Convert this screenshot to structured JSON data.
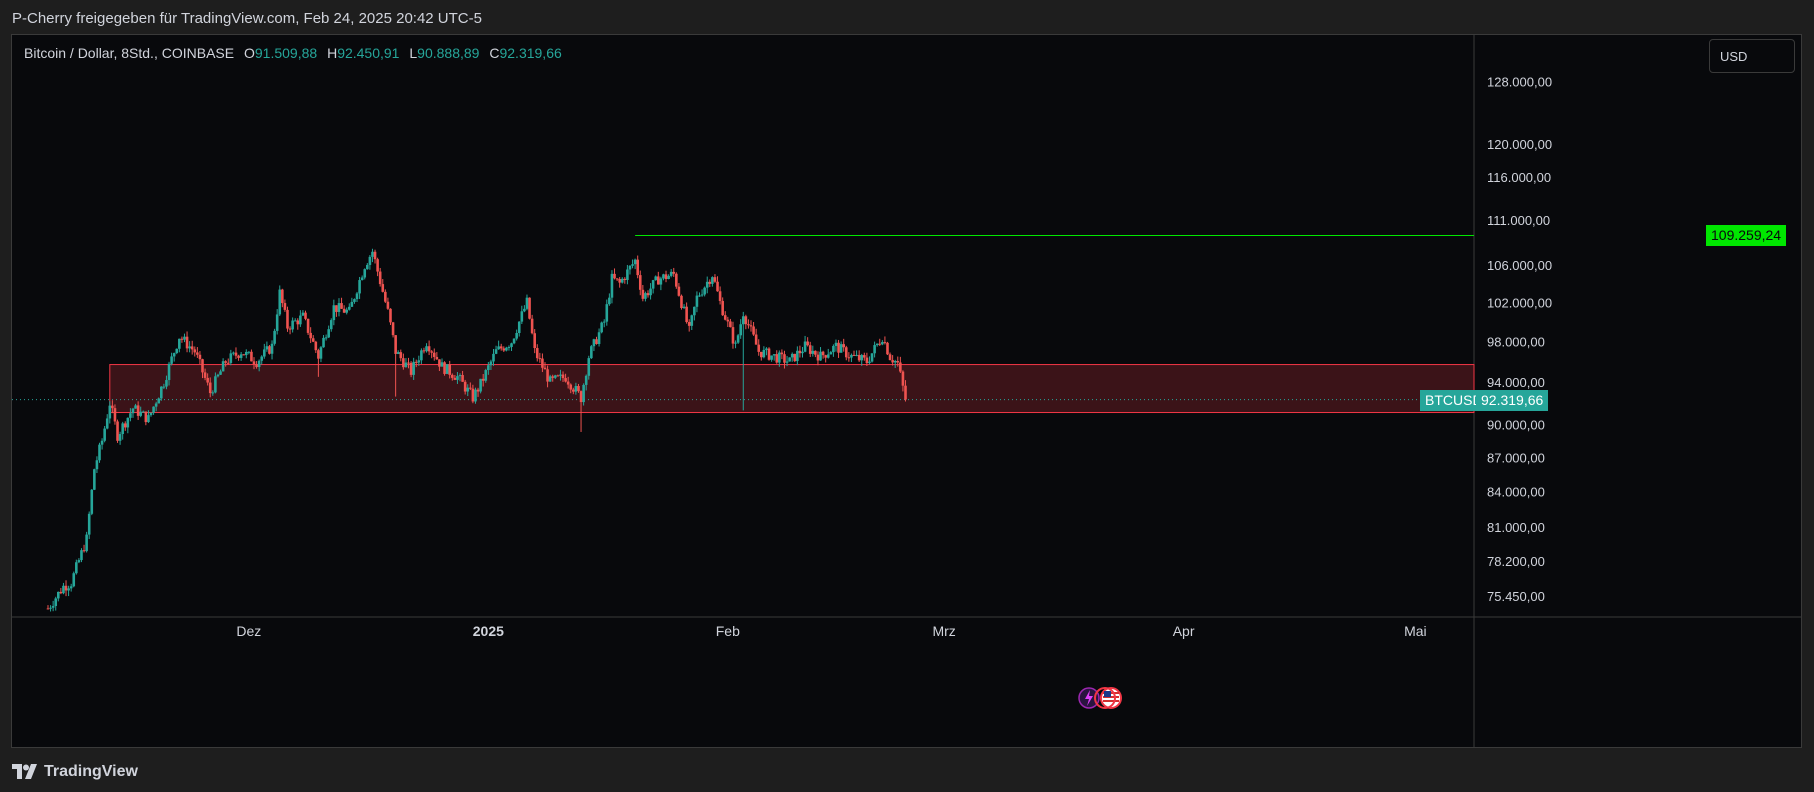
{
  "header": {
    "share_text": "P-Cherry freigegeben für TradingView.com, Feb 24, 2025 20:42 UTC-5"
  },
  "legend": {
    "symbol": "Bitcoin / Dollar, 8Std., COINBASE",
    "open_label": "O",
    "open": "91.509,88",
    "high_label": "H",
    "high": "92.450,91",
    "low_label": "L",
    "low": "90.888,89",
    "close_label": "C",
    "close": "92.319,66"
  },
  "currency": "USD",
  "price_axis": {
    "ticks": [
      "128.000,00",
      "120.000,00",
      "116.000,00",
      "111.000,00",
      "106.000,00",
      "102.000,00",
      "98.000,00",
      "94.000,00",
      "90.000,00",
      "87.000,00",
      "84.000,00",
      "81.000,00",
      "78.200,00",
      "75.450,00"
    ]
  },
  "time_axis": {
    "labels": [
      "Dez",
      "2025",
      "Feb",
      "Mrz",
      "Apr",
      "Mai"
    ]
  },
  "horizontal_line": {
    "label": "109.259,24",
    "color": "#00e600"
  },
  "symbol_tag": {
    "symbol": "BTCUSD",
    "price": "92.319,66",
    "color": "#26a69a"
  },
  "zone": {
    "top": 95700,
    "bottom": 91100,
    "color": "#f23645"
  },
  "colors": {
    "up": "#26a69a",
    "down": "#ef5350",
    "background": "#08090c"
  },
  "footer": {
    "brand": "TradingView"
  },
  "event_icons": [
    "lightning-icon",
    "us-flag-icon",
    "us-flag-icon"
  ],
  "chart_data": {
    "type": "candlestick",
    "symbol": "Bitcoin / Dollar",
    "interval": "8Std.",
    "exchange": "COINBASE",
    "y_scale": "log",
    "ylim": [
      74000,
      133000
    ],
    "x_range": [
      "2024-11-05",
      "2025-05-06"
    ],
    "path_points": [
      [
        "2024-11-05",
        74500
      ],
      [
        "2024-11-07",
        76200
      ],
      [
        "2024-11-08",
        76500
      ],
      [
        "2024-11-10",
        80000
      ],
      [
        "2024-11-11",
        86000
      ],
      [
        "2024-11-12",
        88500
      ],
      [
        "2024-11-13",
        92000
      ],
      [
        "2024-11-14",
        89000
      ],
      [
        "2024-11-16",
        91500
      ],
      [
        "2024-11-18",
        90500
      ],
      [
        "2024-11-20",
        94000
      ],
      [
        "2024-11-22",
        98500
      ],
      [
        "2024-11-24",
        97000
      ],
      [
        "2024-11-26",
        93000
      ],
      [
        "2024-11-28",
        96000
      ],
      [
        "2024-11-30",
        97000
      ],
      [
        "2024-12-02",
        96000
      ],
      [
        "2024-12-04",
        97500
      ],
      [
        "2024-12-05",
        103000
      ],
      [
        "2024-12-06",
        99500
      ],
      [
        "2024-12-08",
        100500
      ],
      [
        "2024-12-10",
        96500
      ],
      [
        "2024-12-12",
        101500
      ],
      [
        "2024-12-14",
        101000
      ],
      [
        "2024-12-16",
        106000
      ],
      [
        "2024-12-17",
        107500
      ],
      [
        "2024-12-19",
        101000
      ],
      [
        "2024-12-20",
        97000
      ],
      [
        "2024-12-22",
        95000
      ],
      [
        "2024-12-24",
        98000
      ],
      [
        "2024-12-26",
        95500
      ],
      [
        "2024-12-28",
        94500
      ],
      [
        "2024-12-30",
        92500
      ],
      [
        "2024-12-31",
        93800
      ],
      [
        "2025-01-02",
        97000
      ],
      [
        "2025-01-04",
        98000
      ],
      [
        "2025-01-06",
        102000
      ],
      [
        "2025-01-07",
        97000
      ],
      [
        "2025-01-09",
        94000
      ],
      [
        "2025-01-11",
        94500
      ],
      [
        "2025-01-13",
        92500
      ],
      [
        "2025-01-14",
        96500
      ],
      [
        "2025-01-16",
        100000
      ],
      [
        "2025-01-17",
        104500
      ],
      [
        "2025-01-18",
        104000
      ],
      [
        "2025-01-20",
        106500
      ],
      [
        "2025-01-21",
        102500
      ],
      [
        "2025-01-23",
        104500
      ],
      [
        "2025-01-25",
        105000
      ],
      [
        "2025-01-27",
        99000
      ],
      [
        "2025-01-28",
        102500
      ],
      [
        "2025-01-30",
        105000
      ],
      [
        "2025-01-31",
        102000
      ],
      [
        "2025-02-02",
        97500
      ],
      [
        "2025-02-03",
        101000
      ],
      [
        "2025-02-05",
        97000
      ],
      [
        "2025-02-07",
        96500
      ],
      [
        "2025-02-09",
        96000
      ],
      [
        "2025-02-11",
        97500
      ],
      [
        "2025-02-13",
        96500
      ],
      [
        "2025-02-15",
        97500
      ],
      [
        "2025-02-17",
        96500
      ],
      [
        "2025-02-19",
        96000
      ],
      [
        "2025-02-21",
        98500
      ],
      [
        "2025-02-22",
        96500
      ],
      [
        "2025-02-23",
        95800
      ],
      [
        "2025-02-24",
        92319.66
      ]
    ],
    "spike_lows": [
      [
        "2024-12-10",
        94500
      ],
      [
        "2024-12-20",
        92600
      ],
      [
        "2025-01-13",
        89300
      ],
      [
        "2025-02-03",
        91300
      ]
    ],
    "resistance_line": {
      "from": "2025-01-20",
      "value": 109259.24
    },
    "support_zone": {
      "from": "2024-11-13",
      "top": 95700,
      "bottom": 91100
    },
    "last_price": 92319.66
  }
}
